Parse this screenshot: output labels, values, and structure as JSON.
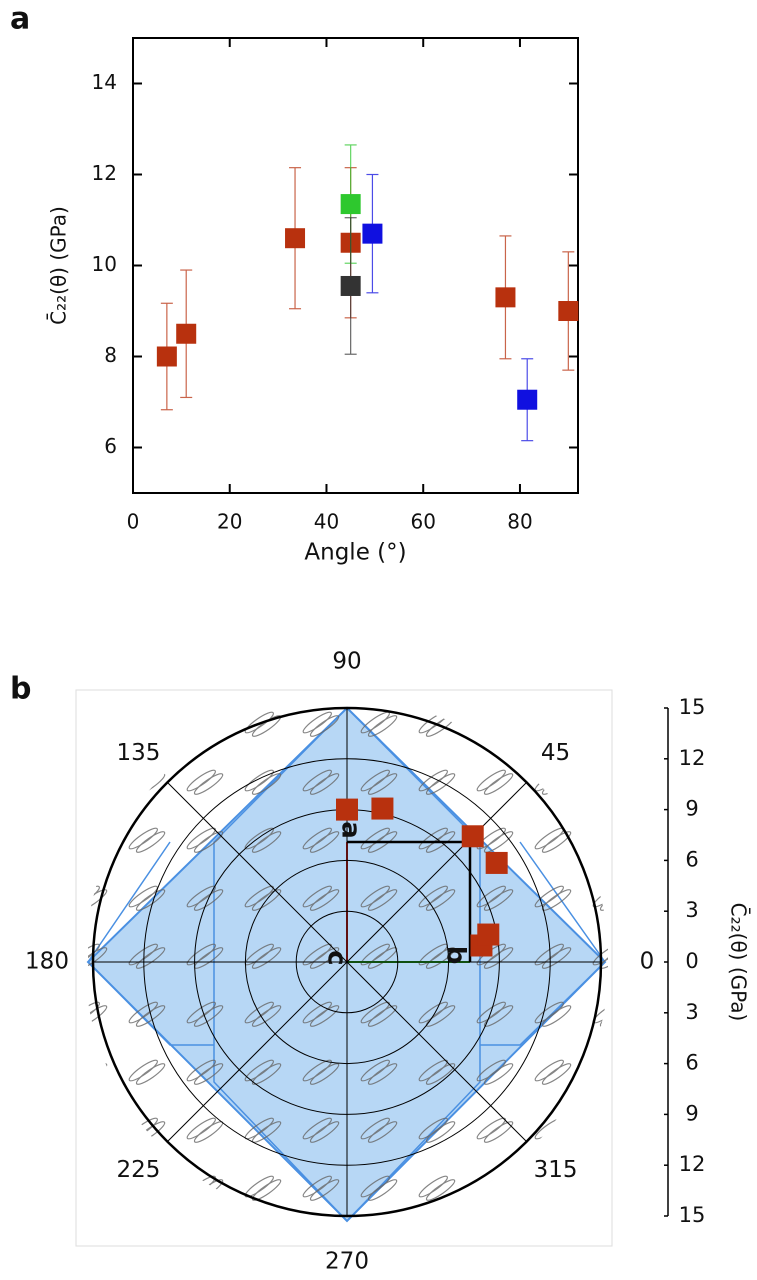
{
  "chart_data": [
    {
      "type": "scatter",
      "panel_label": "a",
      "x_label": "Angle (°)",
      "y_label": "C̄₂₂(θ) (GPa)",
      "xlim": [
        0,
        92
      ],
      "xticks": [
        0,
        20,
        40,
        60,
        80
      ],
      "ylim": [
        5,
        15
      ],
      "yticks": [
        6,
        8,
        10,
        12,
        14
      ],
      "series": [
        {
          "color": "#b8310e",
          "x": [
            7,
            11,
            33.5,
            45,
            77,
            90
          ],
          "values": [
            8.0,
            8.5,
            10.6,
            10.5,
            9.3,
            9.0
          ],
          "errors": [
            1.17,
            1.4,
            1.55,
            1.65,
            1.35,
            1.3
          ]
        },
        {
          "color": "#2ec82e",
          "x": [
            45
          ],
          "values": [
            11.35
          ],
          "errors": [
            1.3
          ]
        },
        {
          "color": "#333333",
          "x": [
            45
          ],
          "values": [
            9.55
          ],
          "errors": [
            1.5
          ]
        },
        {
          "color": "#1010e0",
          "x": [
            49.5,
            81.5
          ],
          "values": [
            10.7,
            7.05
          ],
          "errors": [
            1.3,
            0.9
          ]
        }
      ]
    },
    {
      "type": "polar",
      "panel_label": "b",
      "y_label": "C̄₂₂(θ) (GPa)",
      "angle_ticks": [
        0,
        45,
        90,
        135,
        180,
        225,
        270,
        315
      ],
      "rlim": [
        0,
        15
      ],
      "rticks": [
        3,
        6,
        9,
        12,
        15
      ],
      "ylim": [
        -15,
        15
      ],
      "yticks": [
        {
          "value": -15,
          "label": "15"
        },
        {
          "value": -12,
          "label": "12"
        },
        {
          "value": -9,
          "label": "9"
        },
        {
          "value": -6,
          "label": "6"
        },
        {
          "value": -3,
          "label": "3"
        },
        0,
        3,
        6,
        9,
        12,
        15
      ],
      "annotations": [
        "a",
        "b",
        "c"
      ],
      "series": [
        {
          "color": "#b8310e",
          "theta": [
            7,
            11,
            33.5,
            45,
            77,
            90
          ],
          "values": [
            8.0,
            8.5,
            10.6,
            10.5,
            9.3,
            9.0
          ]
        }
      ]
    }
  ]
}
